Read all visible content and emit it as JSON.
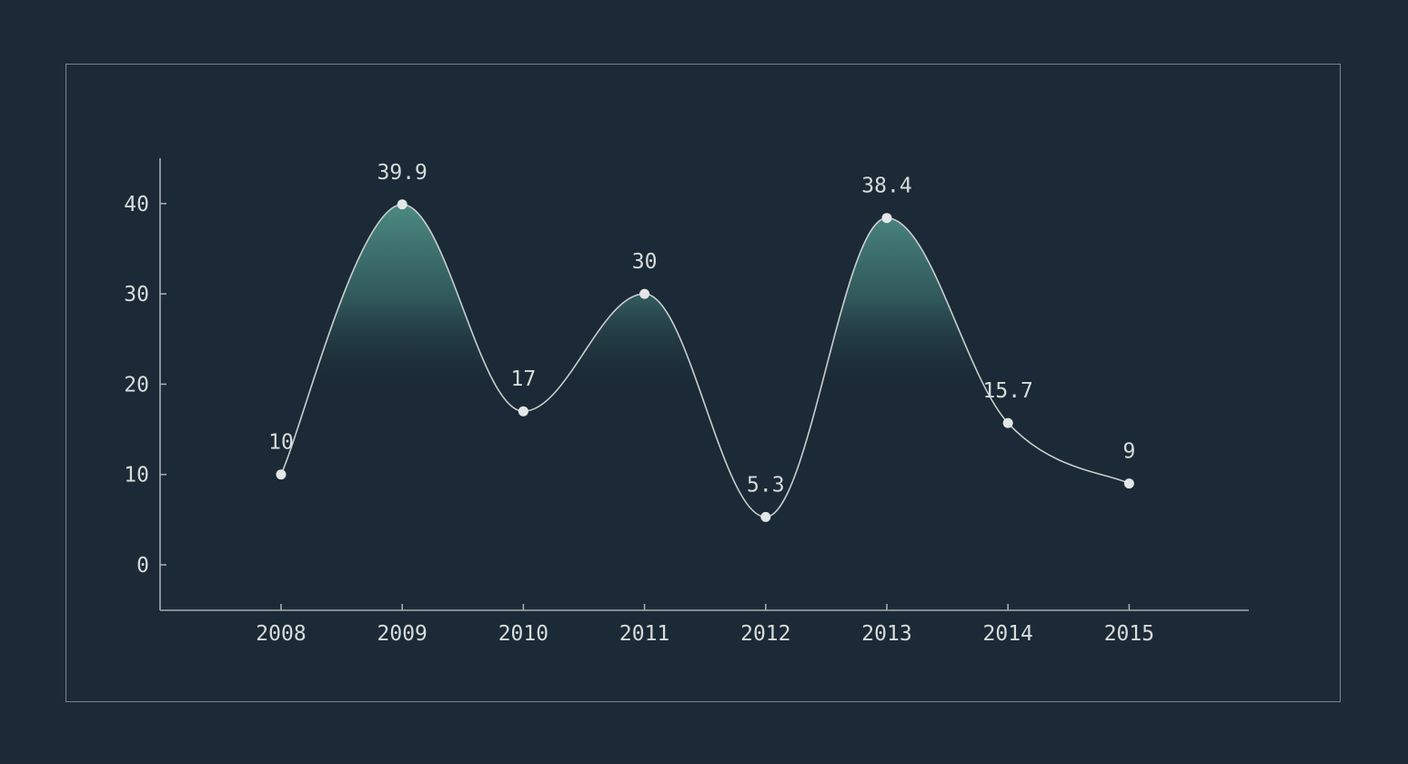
{
  "colors": {
    "background": "#1b2a36",
    "frame": "#7d858a",
    "axis": "#a7acae",
    "line": "#c9cdcd",
    "point": "#e4e7e7",
    "area_top": "#4f8f85",
    "text": "#d8dcdc"
  },
  "chart_data": {
    "type": "line",
    "title": "",
    "xlabel": "",
    "ylabel": "",
    "categories": [
      "2008",
      "2009",
      "2010",
      "2011",
      "2012",
      "2013",
      "2014",
      "2015"
    ],
    "series": [
      {
        "values": [
          10,
          39.9,
          17,
          30,
          5.3,
          38.4,
          15.7,
          9
        ]
      }
    ],
    "data_labels": [
      "10",
      "39.9",
      "17",
      "30",
      "5.3",
      "38.4",
      "15.7",
      "9"
    ],
    "yticks": [
      0,
      10,
      20,
      30,
      40
    ],
    "ytick_labels": [
      "0",
      "10",
      "20",
      "30",
      "40"
    ],
    "ylim": [
      -5,
      45
    ],
    "curve": "smooth",
    "area_fill": "gradient shading above 20 under the curve",
    "grid": false,
    "legend": "none"
  }
}
